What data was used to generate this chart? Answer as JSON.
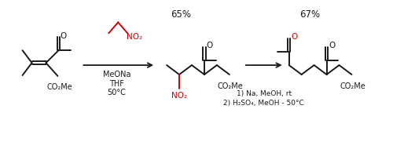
{
  "background_color": "#ffffff",
  "fig_width": 5.0,
  "fig_height": 1.81,
  "dpi": 100,
  "black": "#1a1a1a",
  "red": "#cc0000",
  "yield1": "65%",
  "yield2": "67%",
  "meona": "MeONa",
  "thf": "THF",
  "temp1": "50°C",
  "nitro_label": "NO₂",
  "co2me": "CO₂Me",
  "o_label": "O",
  "reagents2_line1": "1) Na, MeOH, rt",
  "reagents2_line2": "2) H₂SO₄, MeOH - 50°C",
  "font_size": 7.5,
  "font_size_yield": 8.5,
  "font_size_label": 7.0,
  "lw": 1.4
}
